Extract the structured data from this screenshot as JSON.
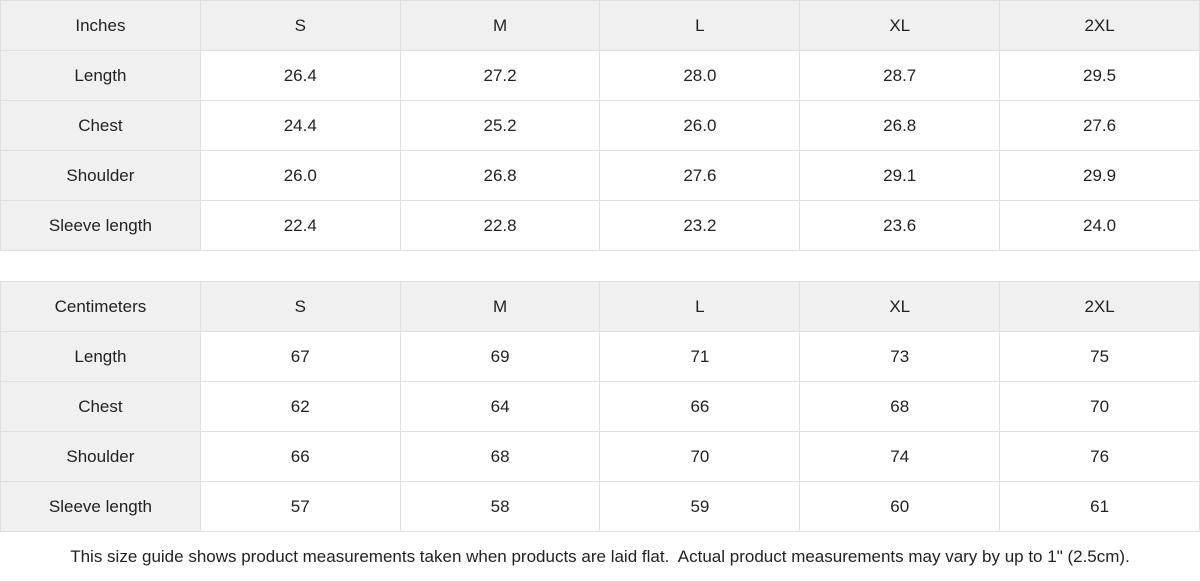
{
  "colors": {
    "header_bg": "#f0f0f0",
    "cell_bg": "#ffffff",
    "border": "#e0e0e0",
    "text": "#222222"
  },
  "tables": [
    {
      "unit_label": "Inches",
      "sizes": [
        "S",
        "M",
        "L",
        "XL",
        "2XL"
      ],
      "rows": [
        {
          "label": "Length",
          "values": [
            "26.4",
            "27.2",
            "28.0",
            "28.7",
            "29.5"
          ]
        },
        {
          "label": "Chest",
          "values": [
            "24.4",
            "25.2",
            "26.0",
            "26.8",
            "27.6"
          ]
        },
        {
          "label": "Shoulder",
          "values": [
            "26.0",
            "26.8",
            "27.6",
            "29.1",
            "29.9"
          ]
        },
        {
          "label": "Sleeve length",
          "values": [
            "22.4",
            "22.8",
            "23.2",
            "23.6",
            "24.0"
          ]
        }
      ]
    },
    {
      "unit_label": "Centimeters",
      "sizes": [
        "S",
        "M",
        "L",
        "XL",
        "2XL"
      ],
      "rows": [
        {
          "label": "Length",
          "values": [
            "67",
            "69",
            "71",
            "73",
            "75"
          ]
        },
        {
          "label": "Chest",
          "values": [
            "62",
            "64",
            "66",
            "68",
            "70"
          ]
        },
        {
          "label": "Shoulder",
          "values": [
            "66",
            "68",
            "70",
            "74",
            "76"
          ]
        },
        {
          "label": "Sleeve length",
          "values": [
            "57",
            "58",
            "59",
            "60",
            "61"
          ]
        }
      ]
    }
  ],
  "footer": {
    "note": "This size guide shows product measurements taken when products are laid flat.  Actual product measurements may vary by up to 1\" (2.5cm)."
  }
}
